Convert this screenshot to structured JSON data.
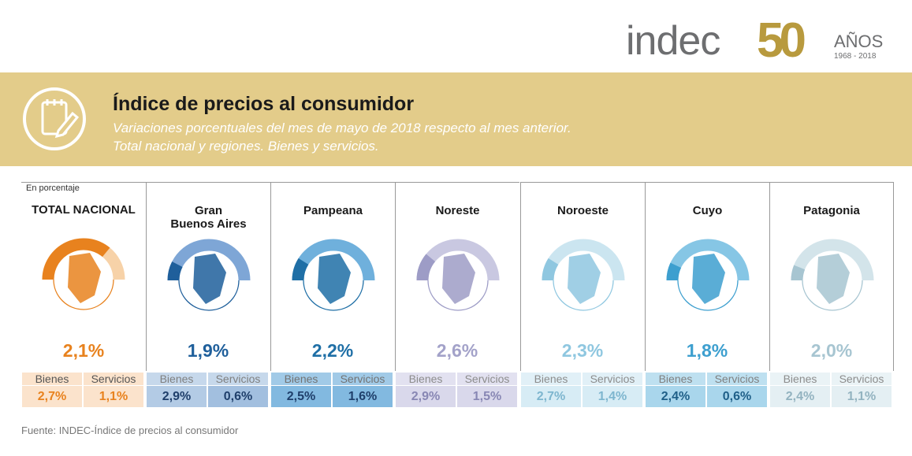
{
  "logo": {
    "name": "indec",
    "number": "50",
    "years": "AÑOS",
    "range": "1968 - 2018"
  },
  "header": {
    "title": "Índice de precios al consumidor",
    "subtitle": [
      "Variaciones porcentuales del mes de mayo de 2018 respecto al mes anterior.",
      "Total nacional y regiones. Bienes y servicios."
    ]
  },
  "unit_note": "En porcentaje",
  "labels": {
    "bienes": "Bienes",
    "servicios": "Servicios"
  },
  "columns": [
    {
      "name": [
        "TOTAL NACIONAL"
      ],
      "total": "2,1%",
      "bienes": "2,7%",
      "servicios": "1,1%"
    },
    {
      "name": [
        "Gran",
        "Buenos Aires"
      ],
      "total": "1,9%",
      "bienes": "2,9%",
      "servicios": "0,6%"
    },
    {
      "name": [
        "Pampeana"
      ],
      "total": "2,2%",
      "bienes": "2,5%",
      "servicios": "1,6%"
    },
    {
      "name": [
        "Noreste"
      ],
      "total": "2,6%",
      "bienes": "2,9%",
      "servicios": "1,5%"
    },
    {
      "name": [
        "Noroeste"
      ],
      "total": "2,3%",
      "bienes": "2,7%",
      "servicios": "1,4%"
    },
    {
      "name": [
        "Cuyo"
      ],
      "total": "1,8%",
      "bienes": "2,4%",
      "servicios": "0,6%"
    },
    {
      "name": [
        "Patagonia"
      ],
      "total": "2,0%",
      "bienes": "2,4%",
      "servicios": "1,1%"
    }
  ],
  "source": "Fuente: INDEC-Índice de precios al consumidor"
}
